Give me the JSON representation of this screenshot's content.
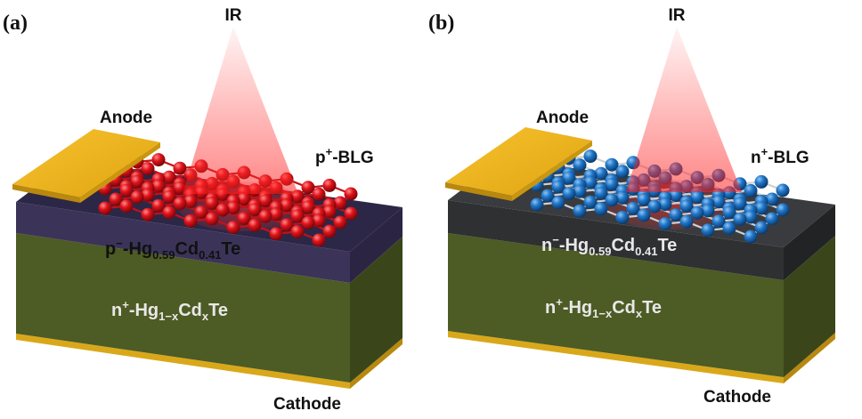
{
  "panels": [
    {
      "id": "a",
      "label": "(a)",
      "ir": "IR",
      "anode": "Anode",
      "cathode": "Cathode",
      "graphene": {
        "sup": "+",
        "prefix": "p",
        "suffix": "-BLG"
      },
      "top_layer": {
        "prefix": "p",
        "sup": "−",
        "el1": "-Hg",
        "sub1": "0.59",
        "el2": "Cd",
        "sub2": "0.41",
        "el3": "Te"
      },
      "bottom_layer": {
        "prefix": "n",
        "sup": "+",
        "el1": "-Hg",
        "sub1": "1−x",
        "el2": "Cd",
        "sub2": "x",
        "el3": "Te"
      },
      "colors": {
        "atom": "#e0131b",
        "top_layer": "#3b3458",
        "bottom_layer": "#4d5b24"
      }
    },
    {
      "id": "b",
      "label": "(b)",
      "ir": "IR",
      "anode": "Anode",
      "cathode": "Cathode",
      "graphene": {
        "sup": "+",
        "prefix": "n",
        "suffix": "-BLG"
      },
      "top_layer": {
        "prefix": "n",
        "sup": "−",
        "el1": "-Hg",
        "sub1": "0.59",
        "el2": "Cd",
        "sub2": "0.41",
        "el3": "Te"
      },
      "bottom_layer": {
        "prefix": "n",
        "sup": "+",
        "el1": "-Hg",
        "sub1": "1−x",
        "el2": "Cd",
        "sub2": "x",
        "el3": "Te"
      },
      "colors": {
        "atom": "#1f76c8",
        "top_layer": "#2f3032",
        "bottom_layer": "#4d5b24"
      }
    }
  ]
}
